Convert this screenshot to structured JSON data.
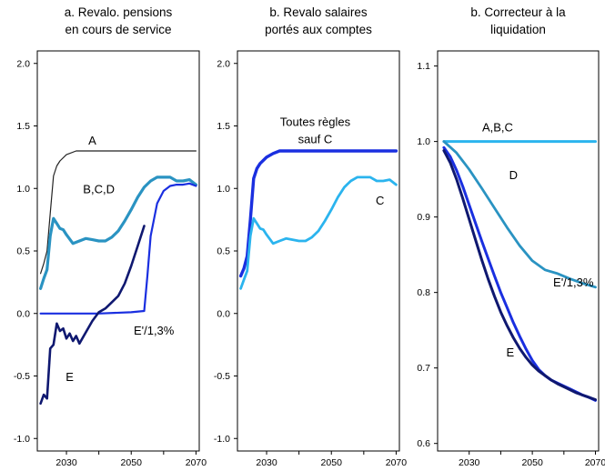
{
  "colors": {
    "navy": "#0f1870",
    "blue": "#1a2fe0",
    "teal": "#2a93c2",
    "light": "#2bb4ee",
    "black": "#222222"
  },
  "chart_data": [
    {
      "type": "line",
      "title_lines": [
        "a. Revalo. pensions",
        "en cours de service"
      ],
      "xlim": [
        2021,
        2071
      ],
      "ylim": [
        -1.1,
        2.1
      ],
      "xticks": [
        2030,
        2050,
        2070
      ],
      "yticks": [
        -1.0,
        -0.5,
        0.0,
        0.5,
        1.0,
        1.5,
        2.0
      ],
      "ytick_labels": [
        "-1.0",
        "-0.5",
        "0.0",
        "0.5",
        "1.0",
        "1.5",
        "2.0"
      ],
      "annotations": [
        {
          "text": "A",
          "x": 2038,
          "y": 1.38
        },
        {
          "text": "B,C,D",
          "x": 2040,
          "y": 0.99
        },
        {
          "text": "E'/1,3%",
          "x": 2057,
          "y": -0.14
        },
        {
          "text": "E",
          "x": 2031,
          "y": -0.51
        }
      ],
      "series": [
        {
          "label": "A",
          "color": "black",
          "width": 1.2,
          "x": [
            2022,
            2023,
            2024,
            2025,
            2026,
            2027,
            2028,
            2030,
            2033,
            2036,
            2040,
            2050,
            2060,
            2070
          ],
          "y": [
            0.32,
            0.4,
            0.5,
            0.8,
            1.1,
            1.18,
            1.22,
            1.27,
            1.3,
            1.3,
            1.3,
            1.3,
            1.3,
            1.3
          ]
        },
        {
          "label": "B,C,D",
          "color": "teal",
          "width": 3.2,
          "x": [
            2022,
            2023,
            2024,
            2025,
            2026,
            2027,
            2028,
            2029,
            2030,
            2032,
            2034,
            2036,
            2038,
            2040,
            2042,
            2044,
            2046,
            2048,
            2050,
            2052,
            2054,
            2056,
            2058,
            2060,
            2062,
            2064,
            2066,
            2068,
            2070
          ],
          "y": [
            0.2,
            0.28,
            0.35,
            0.62,
            0.76,
            0.72,
            0.68,
            0.67,
            0.63,
            0.56,
            0.58,
            0.6,
            0.59,
            0.58,
            0.58,
            0.61,
            0.66,
            0.74,
            0.83,
            0.93,
            1.01,
            1.06,
            1.09,
            1.09,
            1.09,
            1.06,
            1.06,
            1.07,
            1.03
          ]
        },
        {
          "label": "E'/1,3%",
          "color": "blue",
          "width": 2.2,
          "x": [
            2022,
            2030,
            2040,
            2050,
            2054,
            2055,
            2056,
            2058,
            2060,
            2062,
            2064,
            2066,
            2068,
            2070
          ],
          "y": [
            0.0,
            0.0,
            0.0,
            0.01,
            0.02,
            0.3,
            0.62,
            0.88,
            0.98,
            1.02,
            1.03,
            1.03,
            1.04,
            1.02
          ]
        },
        {
          "label": "E",
          "color": "navy",
          "width": 2.6,
          "x": [
            2022,
            2023,
            2024,
            2025,
            2026,
            2027,
            2028,
            2029,
            2030,
            2031,
            2032,
            2033,
            2034,
            2036,
            2038,
            2040,
            2042,
            2044,
            2046,
            2048,
            2050,
            2052,
            2054
          ],
          "y": [
            -0.72,
            -0.65,
            -0.68,
            -0.28,
            -0.25,
            -0.08,
            -0.14,
            -0.12,
            -0.2,
            -0.16,
            -0.22,
            -0.18,
            -0.24,
            -0.15,
            -0.06,
            0.01,
            0.04,
            0.09,
            0.14,
            0.24,
            0.38,
            0.54,
            0.7
          ]
        }
      ]
    },
    {
      "type": "line",
      "title_lines": [
        "b. Revalo salaires",
        "portés aux comptes"
      ],
      "xlim": [
        2021,
        2071
      ],
      "ylim": [
        -1.1,
        2.1
      ],
      "xticks": [
        2030,
        2050,
        2070
      ],
      "yticks": [
        -1.0,
        -0.5,
        0.0,
        0.5,
        1.0,
        1.5,
        2.0
      ],
      "ytick_labels": [
        "-1.0",
        "-0.5",
        "0.0",
        "0.5",
        "1.0",
        "1.5",
        "2.0"
      ],
      "annotations": [
        {
          "text": "Toutes règles",
          "x": 2045,
          "y": 1.53
        },
        {
          "text": "sauf C",
          "x": 2045,
          "y": 1.39
        },
        {
          "text": "C",
          "x": 2065,
          "y": 0.9
        }
      ],
      "series": [
        {
          "label": "Toutes règles sauf C",
          "color": "blue",
          "width": 3.4,
          "x": [
            2022,
            2023,
            2024,
            2025,
            2026,
            2027,
            2028,
            2030,
            2032,
            2034,
            2036,
            2040,
            2050,
            2060,
            2070
          ],
          "y": [
            0.3,
            0.36,
            0.46,
            0.75,
            1.08,
            1.16,
            1.2,
            1.25,
            1.28,
            1.3,
            1.3,
            1.3,
            1.3,
            1.3,
            1.3
          ]
        },
        {
          "label": "C",
          "color": "light",
          "width": 2.8,
          "x": [
            2022,
            2023,
            2024,
            2025,
            2026,
            2027,
            2028,
            2029,
            2030,
            2032,
            2034,
            2036,
            2038,
            2040,
            2042,
            2044,
            2046,
            2048,
            2050,
            2052,
            2054,
            2056,
            2058,
            2060,
            2062,
            2064,
            2066,
            2068,
            2070
          ],
          "y": [
            0.2,
            0.27,
            0.34,
            0.62,
            0.76,
            0.72,
            0.68,
            0.67,
            0.63,
            0.56,
            0.58,
            0.6,
            0.59,
            0.58,
            0.58,
            0.61,
            0.66,
            0.74,
            0.83,
            0.93,
            1.01,
            1.06,
            1.09,
            1.09,
            1.09,
            1.06,
            1.06,
            1.07,
            1.03
          ]
        }
      ]
    },
    {
      "type": "line",
      "title_lines": [
        "b. Correcteur à la",
        "liquidation"
      ],
      "xlim": [
        2020,
        2071
      ],
      "ylim": [
        0.59,
        1.12
      ],
      "xticks": [
        2030,
        2050,
        2070
      ],
      "yticks": [
        0.6,
        0.7,
        0.8,
        0.9,
        1.0,
        1.1
      ],
      "ytick_labels": [
        "0.6",
        "0.7",
        "0.8",
        "0.9",
        "1.0",
        "1.1"
      ],
      "annotations": [
        {
          "text": "A,B,C",
          "x": 2039,
          "y": 1.018
        },
        {
          "text": "D",
          "x": 2044,
          "y": 0.955
        },
        {
          "text": "E'/1,3%",
          "x": 2063,
          "y": 0.813
        },
        {
          "text": "E",
          "x": 2043,
          "y": 0.72
        }
      ],
      "series": [
        {
          "label": "A,B,C",
          "color": "light",
          "width": 3.0,
          "x": [
            2022,
            2030,
            2040,
            2050,
            2060,
            2070
          ],
          "y": [
            1.0,
            1.0,
            1.0,
            1.0,
            1.0,
            1.0
          ]
        },
        {
          "label": "D",
          "color": "teal",
          "width": 2.8,
          "x": [
            2022,
            2026,
            2030,
            2034,
            2038,
            2042,
            2046,
            2050,
            2054,
            2058,
            2062,
            2066,
            2070
          ],
          "y": [
            1.0,
            0.985,
            0.963,
            0.938,
            0.912,
            0.886,
            0.862,
            0.842,
            0.83,
            0.825,
            0.818,
            0.812,
            0.807
          ]
        },
        {
          "label": "E'/1,3%",
          "color": "blue",
          "width": 3.0,
          "x": [
            2022,
            2024,
            2026,
            2028,
            2030,
            2032,
            2034,
            2036,
            2038,
            2040,
            2042,
            2044,
            2046,
            2048,
            2050,
            2052,
            2054,
            2056,
            2058,
            2060,
            2062,
            2064,
            2066,
            2068,
            2070
          ],
          "y": [
            0.992,
            0.98,
            0.962,
            0.94,
            0.916,
            0.892,
            0.868,
            0.845,
            0.822,
            0.8,
            0.78,
            0.76,
            0.742,
            0.725,
            0.71,
            0.698,
            0.69,
            0.684,
            0.68,
            0.676,
            0.672,
            0.668,
            0.664,
            0.661,
            0.657
          ]
        },
        {
          "label": "E",
          "color": "navy",
          "width": 3.0,
          "x": [
            2022,
            2024,
            2026,
            2028,
            2030,
            2032,
            2034,
            2036,
            2038,
            2040,
            2042,
            2044,
            2046,
            2048,
            2050,
            2052,
            2054,
            2056,
            2058,
            2060,
            2062,
            2064,
            2066,
            2068,
            2070
          ],
          "y": [
            0.988,
            0.972,
            0.95,
            0.924,
            0.897,
            0.87,
            0.843,
            0.818,
            0.795,
            0.774,
            0.756,
            0.74,
            0.726,
            0.714,
            0.704,
            0.696,
            0.69,
            0.684,
            0.679,
            0.675,
            0.671,
            0.667,
            0.664,
            0.661,
            0.658
          ]
        }
      ]
    }
  ]
}
